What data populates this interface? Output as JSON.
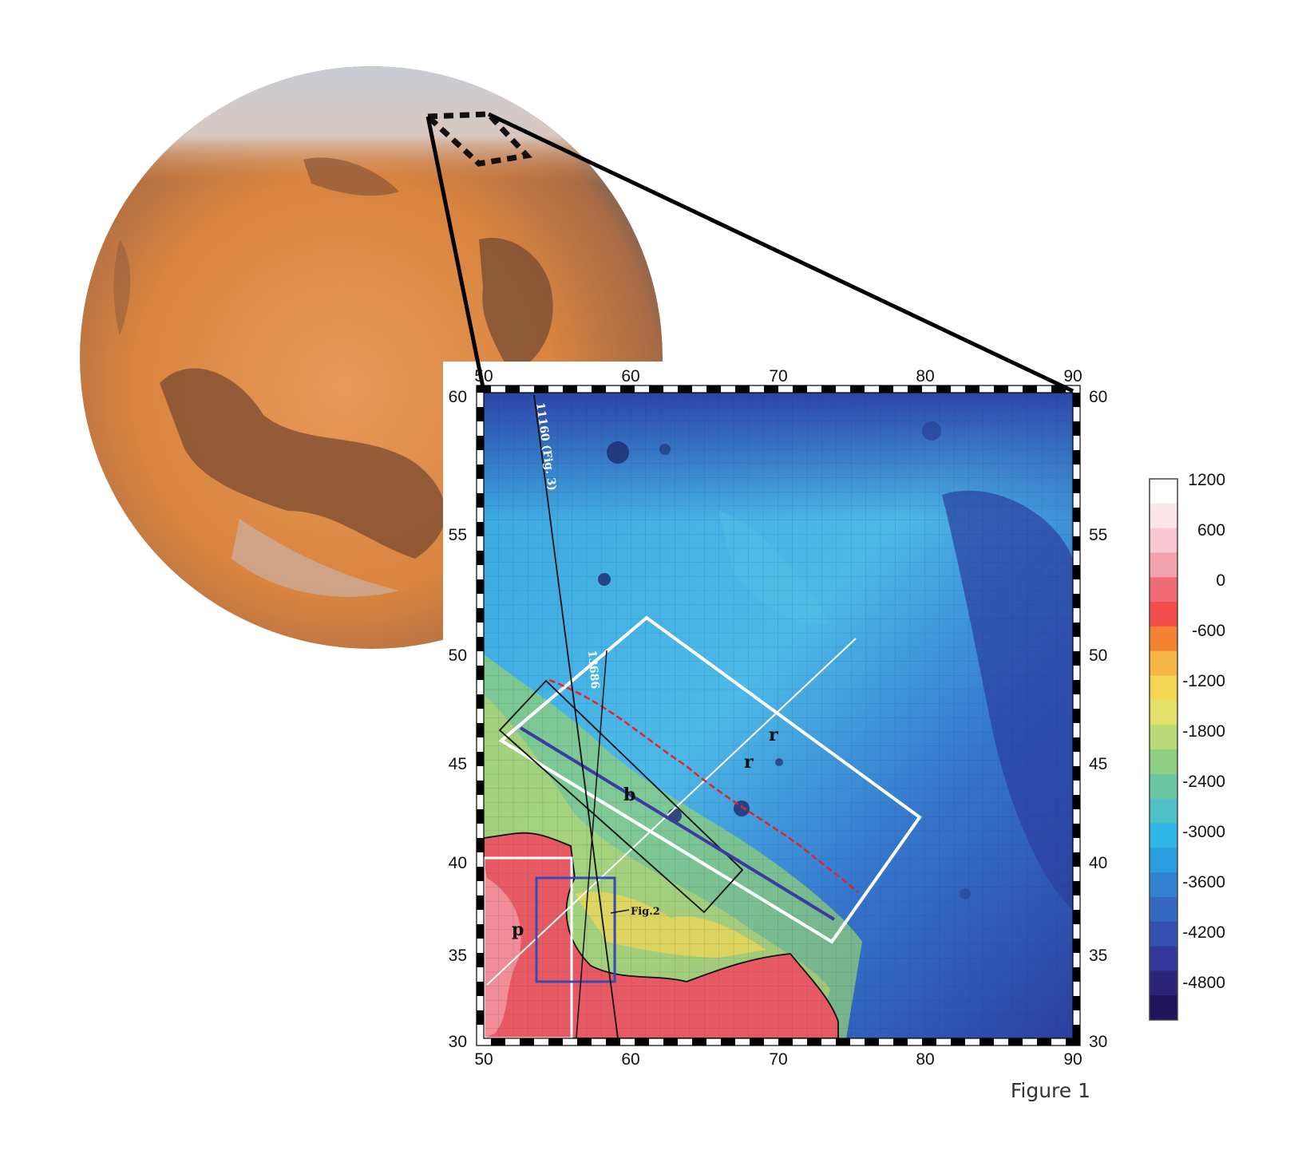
{
  "colors": {
    "mars_orange": "#d98a4e",
    "mars_dark": "#7a4a30",
    "map_deep_blue": "#2b3f9e",
    "map_light_blue": "#3fb4e4",
    "map_green": "#8fcf7a",
    "map_red": "#e85a63",
    "frame_black": "#000000",
    "box_white": "#ffffff",
    "line_blue": "#3a3aa0",
    "line_red": "#e8202a"
  },
  "map": {
    "lon_top_ticks": [
      "50",
      "60",
      "70",
      "80",
      "90"
    ],
    "lon_bottom_ticks": [
      "50",
      "60",
      "70",
      "80",
      "90"
    ],
    "lat_left_ticks": [
      "60",
      "55",
      "50",
      "45",
      "40",
      "35",
      "30"
    ],
    "lat_right_ticks": [
      "60",
      "55",
      "50",
      "45",
      "40",
      "35",
      "30"
    ],
    "labels": {
      "r1": "r",
      "r2": "r",
      "b": "b",
      "p": "p",
      "fig2": "Fig.2",
      "track1": "11160 (Fig. 3)",
      "track2": "13686"
    }
  },
  "colorbar": {
    "ticks": [
      "1200",
      "600",
      "0",
      "-600",
      "-1200",
      "-1800",
      "-2400",
      "-3000",
      "-3600",
      "-4200",
      "-4800"
    ],
    "colors": [
      "#ffffff",
      "#fde6ea",
      "#f9c8d0",
      "#f4a2ad",
      "#f06b74",
      "#f24c4c",
      "#f58232",
      "#f7b545",
      "#f3d753",
      "#e3e16a",
      "#b9da77",
      "#8ecf82",
      "#6bc7a1",
      "#4fc0c5",
      "#2db6e6",
      "#2a9ee0",
      "#3183d2",
      "#3468c2",
      "#3550b0",
      "#33389a",
      "#2a247a",
      "#20145c"
    ]
  },
  "caption": "Figure 1"
}
